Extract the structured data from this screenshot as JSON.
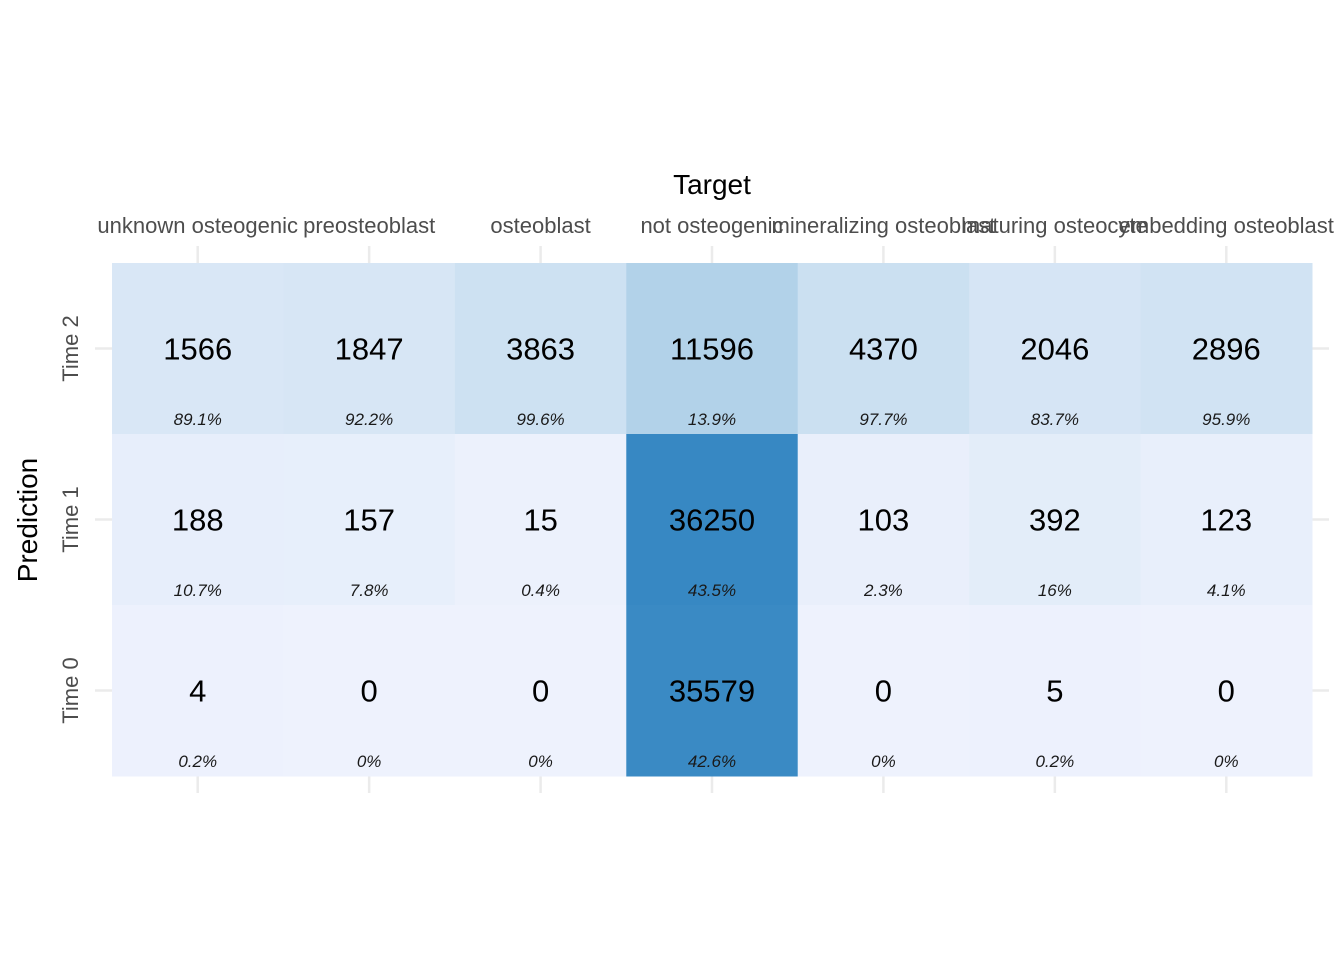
{
  "chart_data": {
    "type": "heatmap",
    "title": "",
    "xlabel": "Target",
    "ylabel": "Prediction",
    "x_axis_position": "top",
    "x_categories": [
      "unknown osteogenic",
      "preosteoblast",
      "osteoblast",
      "not osteogenic",
      "mineralizing osteoblast",
      "maturing osteocyte",
      "embedding osteoblast"
    ],
    "y_categories": [
      "Time 2",
      "Time 1",
      "Time 0"
    ],
    "counts": [
      [
        1566,
        1847,
        3863,
        11596,
        4370,
        2046,
        2896
      ],
      [
        188,
        157,
        15,
        36250,
        103,
        392,
        123
      ],
      [
        4,
        0,
        0,
        35579,
        0,
        5,
        0
      ]
    ],
    "percentages": [
      [
        "89.1%",
        "92.2%",
        "99.6%",
        "13.9%",
        "97.7%",
        "83.7%",
        "95.9%"
      ],
      [
        "10.7%",
        "7.8%",
        "0.4%",
        "43.5%",
        "2.3%",
        "16%",
        "4.1%"
      ],
      [
        "0.2%",
        "0%",
        "0%",
        "42.6%",
        "0%",
        "0.2%",
        "0%"
      ]
    ],
    "color_scale": {
      "low": "#eef2fd",
      "mid": "#b6d5ea",
      "high": "#3788c3"
    },
    "grid": false,
    "legend": "none"
  }
}
